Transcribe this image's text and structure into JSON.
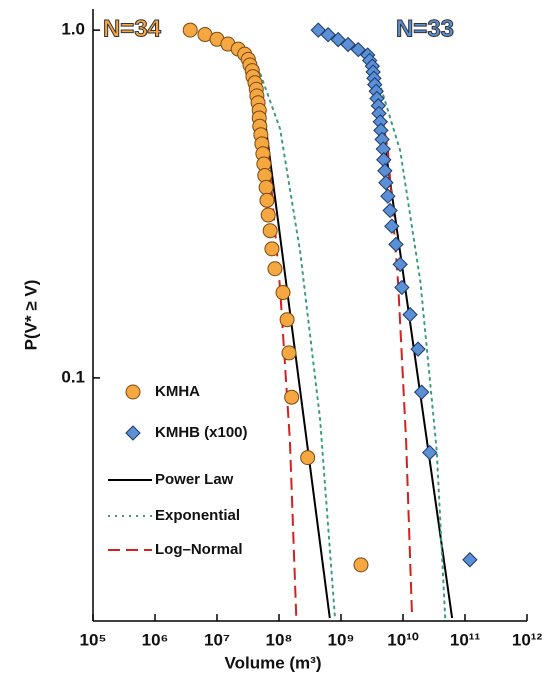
{
  "chart_data": {
    "type": "scatter",
    "xlabel": "Volume (m³)",
    "ylabel": "P(V* ≥ V)",
    "log_x": true,
    "log_y": true,
    "xlim": [
      100000,
      1000000000000
    ],
    "ylim": [
      0.02,
      1.15
    ],
    "xticks": [
      {
        "value": 100000,
        "label": "10⁵"
      },
      {
        "value": 1000000,
        "label": "10⁶"
      },
      {
        "value": 10000000,
        "label": "10⁷"
      },
      {
        "value": 100000000,
        "label": "10⁸"
      },
      {
        "value": 1000000000,
        "label": "10⁹"
      },
      {
        "value": 10000000000,
        "label": "10¹⁰"
      },
      {
        "value": 100000000000,
        "label": "10¹¹"
      },
      {
        "value": 1000000000000,
        "label": "10¹²"
      }
    ],
    "yticks": [
      {
        "value": 1,
        "label": "1.0"
      },
      0.1
    ],
    "series": [
      {
        "name": "KMHA",
        "color": "#f5a742",
        "marker": "circle",
        "x": [
          3700000.0,
          6400000.0,
          10000000.0,
          15000000.0,
          22000000.0,
          28000000.0,
          32000000.0,
          34000000.0,
          37000000.0,
          38000000.0,
          41000000.0,
          43000000.0,
          44000000.0,
          46000000.0,
          48000000.0,
          48000000.0,
          49000000.0,
          51000000.0,
          53000000.0,
          55000000.0,
          57000000.0,
          59000000.0,
          62000000.0,
          64000000.0,
          67000000.0,
          72000000.0,
          77000000.0,
          86000000.0,
          116000000.0,
          135000000.0,
          145000000.0,
          160000000.0,
          290000000.0,
          2100000000.0
        ],
        "y": [
          1.0,
          0.971,
          0.941,
          0.912,
          0.882,
          0.853,
          0.824,
          0.794,
          0.765,
          0.735,
          0.706,
          0.676,
          0.647,
          0.618,
          0.588,
          0.559,
          0.529,
          0.5,
          0.471,
          0.441,
          0.412,
          0.382,
          0.353,
          0.324,
          0.294,
          0.265,
          0.235,
          0.206,
          0.176,
          0.147,
          0.118,
          0.088,
          0.059,
          0.029
        ]
      },
      {
        "name": "KMHB (x100)",
        "color": "#5b8fd6",
        "marker": "diamond",
        "x": [
          430000000.0,
          620000000.0,
          900000000.0,
          1300000000.0,
          1900000000.0,
          2700000000.0,
          2900000000.0,
          3200000000.0,
          3300000000.0,
          3400000000.0,
          3500000000.0,
          3700000000.0,
          3800000000.0,
          4000000000.0,
          4100000000.0,
          4300000000.0,
          4400000000.0,
          4600000000.0,
          4800000000.0,
          4900000000.0,
          5100000000.0,
          5300000000.0,
          5700000000.0,
          6200000000.0,
          6600000000.0,
          7700000000.0,
          9000000000.0,
          9600000000.0,
          13000000000.0,
          17500000000.0,
          20000000000.0,
          27000000000.0,
          120000000000.0
        ],
        "y": [
          1.0,
          0.97,
          0.939,
          0.909,
          0.879,
          0.848,
          0.818,
          0.788,
          0.758,
          0.727,
          0.697,
          0.667,
          0.636,
          0.606,
          0.576,
          0.545,
          0.515,
          0.485,
          0.455,
          0.424,
          0.394,
          0.364,
          0.333,
          0.303,
          0.273,
          0.242,
          0.212,
          0.182,
          0.152,
          0.121,
          0.091,
          0.061,
          0.03
        ]
      }
    ],
    "fits": [
      {
        "name": "Power Law",
        "color": "#000000",
        "style": "solid",
        "segments": [
          {
            "x": [
              46000000.0,
              660000000.0
            ],
            "y": [
              0.78,
              0.0204
            ]
          },
          {
            "x": [
              3300000000.0,
              62000000000.0
            ],
            "y": [
              0.81,
              0.0204
            ]
          }
        ]
      },
      {
        "name": "Exponential",
        "color": "#3a9c82",
        "style": "dotted",
        "segments": [
          {
            "x": [
              46000000.0,
              104000000.0,
              220000000.0,
              460000000.0,
              800000000.0
            ],
            "y": [
              0.78,
              0.52,
              0.23,
              0.076,
              0.0204
            ]
          },
          {
            "x": [
              3300000000.0,
              9000000000.0,
              19000000000.0,
              35000000000.0,
              48000000000.0
            ],
            "y": [
              0.81,
              0.45,
              0.19,
              0.062,
              0.0204
            ]
          }
        ]
      },
      {
        "name": "Log–Normal",
        "color": "#d42020",
        "style": "dashed",
        "segments": [
          {
            "x": [
              41000000.0,
              67000000.0,
              104000000.0,
              150000000.0,
              190000000.0
            ],
            "y": [
              0.79,
              0.45,
              0.18,
              0.066,
              0.0204
            ]
          },
          {
            "x": [
              3300000000.0,
              5700000000.0,
              8300000000.0,
              11200000000.0,
              14000000000.0
            ],
            "y": [
              0.81,
              0.45,
              0.19,
              0.066,
              0.0204
            ]
          }
        ]
      }
    ],
    "annotations": [
      {
        "text": "N=34",
        "color": "#f5a742"
      },
      {
        "text": "N=33",
        "color": "#5b8fd6"
      }
    ]
  }
}
